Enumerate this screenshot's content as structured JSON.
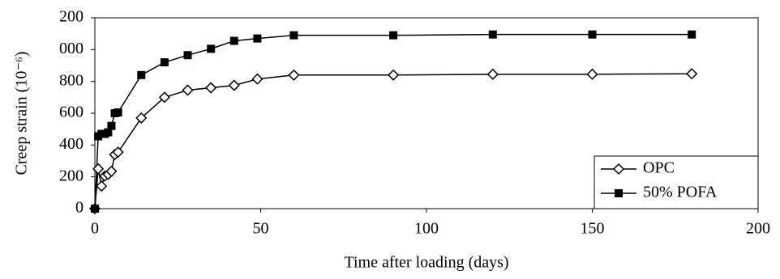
{
  "chart_data": {
    "type": "line",
    "x_label": "Time after loading (days)",
    "y_label": "Creep strain  (10⁻⁶)",
    "x": [
      0,
      1,
      2,
      3,
      4,
      5,
      6,
      7,
      14,
      21,
      28,
      35,
      42,
      49,
      60,
      90,
      120,
      150,
      180
    ],
    "series": [
      {
        "name": "OPC",
        "color": "#000000",
        "marker": "diamond-open",
        "values": [
          0,
          250,
          142,
          205,
          215,
          235,
          340,
          355,
          570,
          700,
          745,
          760,
          775,
          815,
          840,
          840,
          845,
          845,
          848
        ]
      },
      {
        "name": "50% POFA",
        "color": "#000000",
        "marker": "square",
        "values": [
          0,
          455,
          470,
          470,
          480,
          520,
          600,
          605,
          840,
          920,
          965,
          1005,
          1055,
          1070,
          1090,
          1090,
          1095,
          1095,
          1095
        ]
      }
    ],
    "xlim": [
      0,
      200
    ],
    "xticks": [
      0,
      50,
      100,
      150,
      200
    ],
    "ylim": [
      0,
      1200
    ],
    "yticks": [
      0,
      200,
      400,
      600,
      800,
      {
        "value": 1000,
        "label": "000"
      },
      {
        "value": 1200,
        "label": "200"
      }
    ],
    "legend": "lower-right"
  }
}
